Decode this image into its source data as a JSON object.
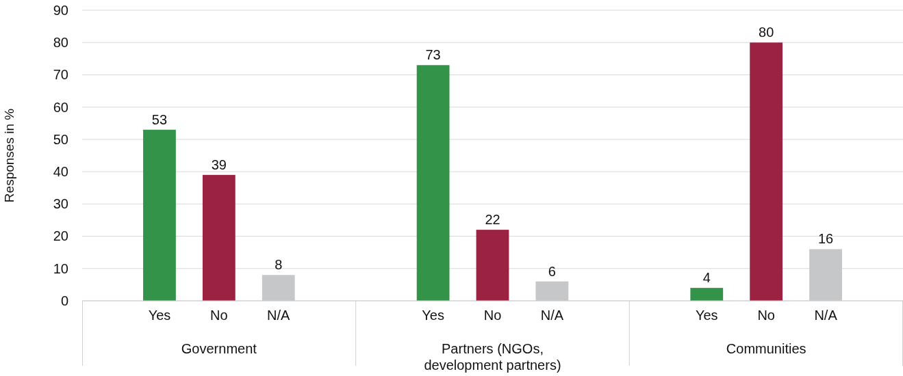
{
  "chart_data": {
    "type": "bar",
    "ylabel": "Responses in %",
    "categories": [
      "Government",
      "Partners (NGOs, development partners)",
      "Communities"
    ],
    "series": [
      {
        "name": "Yes",
        "color": "#339348",
        "values": [
          53,
          73,
          4
        ]
      },
      {
        "name": "No",
        "color": "#9b2242",
        "values": [
          39,
          22,
          80
        ]
      },
      {
        "name": "N/A",
        "color": "#c6c7c9",
        "values": [
          8,
          6,
          16
        ]
      }
    ],
    "ylim": [
      0,
      90
    ],
    "yticks": [
      0,
      10,
      20,
      30,
      40,
      50,
      60,
      70,
      80,
      90
    ],
    "grid": "y",
    "data_labels": true
  }
}
